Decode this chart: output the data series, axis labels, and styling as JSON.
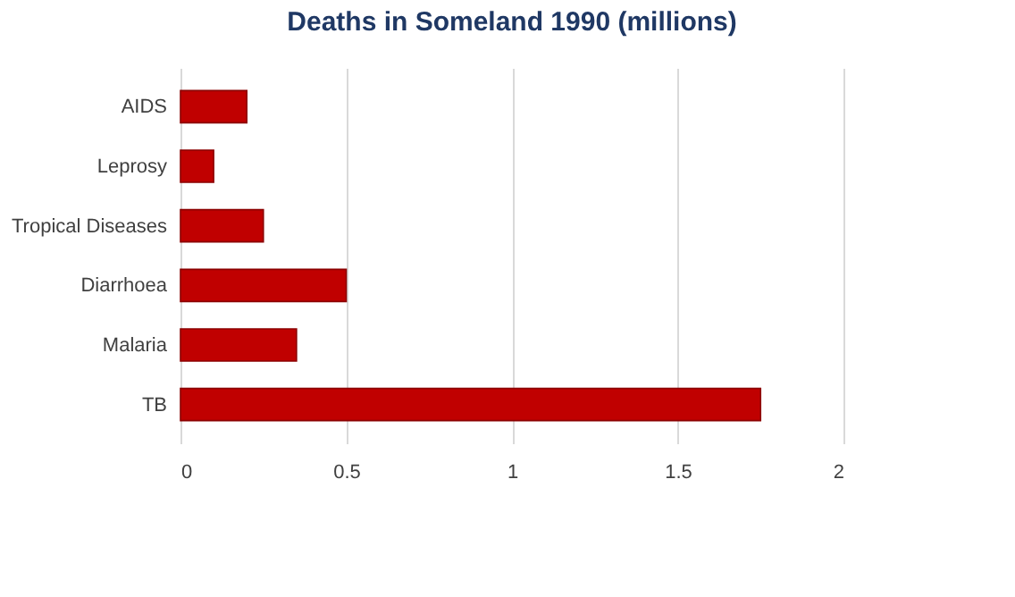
{
  "chart_data": {
    "type": "bar",
    "orientation": "horizontal",
    "title": "Deaths in Someland 1990 (millions)",
    "categories": [
      "AIDS",
      "Leprosy",
      "Tropical Diseases",
      "Diarrhoea",
      "Malaria",
      "TB"
    ],
    "values": [
      0.2,
      0.1,
      0.25,
      0.5,
      0.35,
      1.75
    ],
    "color": "#c00000",
    "xlim": [
      0,
      2
    ],
    "xticks": [
      0,
      0.5,
      1,
      1.5,
      2
    ],
    "grid": "x"
  }
}
